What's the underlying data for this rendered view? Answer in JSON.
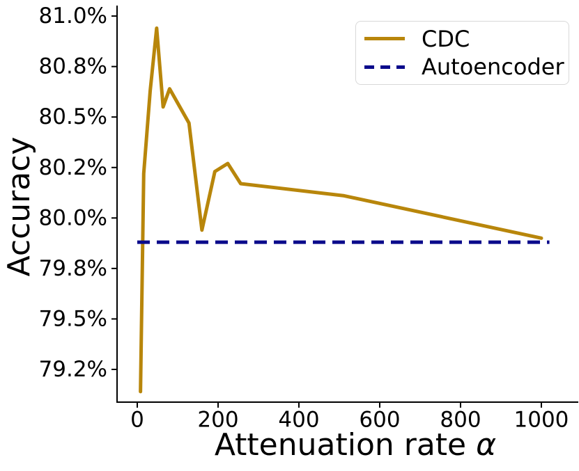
{
  "chart_data": {
    "type": "line",
    "title": "",
    "xlabel": "Attenuation rate α",
    "xlabel_parts": {
      "text": "Attenuation rate",
      "symbol": "α"
    },
    "ylabel": "Accuracy",
    "xlim": [
      -50,
      1088
    ],
    "ylim": [
      79.088,
      81.052
    ],
    "grid": false,
    "background": "#ffffff",
    "spine_color": "#000000",
    "tick_color": "#000000",
    "xticks": {
      "values": [
        0,
        200,
        400,
        600,
        800,
        1000
      ],
      "labels": [
        "0",
        "200",
        "400",
        "600",
        "800",
        "1000"
      ]
    },
    "yticks": {
      "values": [
        79.25,
        79.5,
        79.75,
        80.0,
        80.25,
        80.5,
        80.75,
        81.0
      ],
      "labels": [
        "79.2%",
        "79.5%",
        "79.8%",
        "80.0%",
        "80.2%",
        "80.5%",
        "80.8%",
        "81.0%"
      ]
    },
    "series": [
      {
        "name": "CDC",
        "type": "line",
        "style": "solid",
        "color": "#B8860B",
        "linewidth": 5,
        "x": [
          8,
          16,
          32,
          48,
          64,
          80,
          128,
          160,
          192,
          224,
          256,
          512,
          1000
        ],
        "y": [
          79.14,
          80.22,
          80.63,
          80.94,
          80.55,
          80.64,
          80.47,
          79.94,
          80.23,
          80.27,
          80.17,
          80.11,
          79.9
        ]
      },
      {
        "name": "Autoencoder",
        "type": "hline",
        "style": "dashed",
        "color": "#0A0A8B",
        "linewidth": 5,
        "value": 79.88,
        "x_range": [
          0,
          1020
        ]
      }
    ],
    "legend": {
      "position": "upper right",
      "entries": [
        "CDC",
        "Autoencoder"
      ]
    }
  }
}
